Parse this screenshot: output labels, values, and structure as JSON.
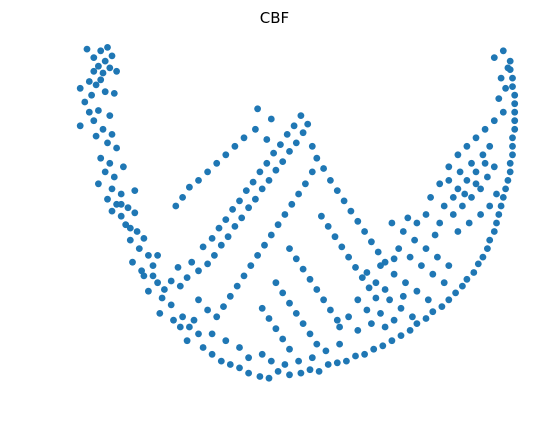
{
  "chart_data": {
    "type": "scatter",
    "title": "CBF",
    "xlabel": "",
    "ylabel": "",
    "axes_visible": false,
    "grid": false,
    "xlim": [
      -1.0,
      1.0
    ],
    "ylim": [
      -1.0,
      1.0
    ],
    "marker_color": "#1f77b4",
    "series": [
      {
        "points": [
          [
            -0.89,
            0.97
          ],
          [
            -0.8,
            0.98
          ],
          [
            -0.78,
            0.93
          ],
          [
            -0.81,
            0.9
          ],
          [
            -0.84,
            0.87
          ],
          [
            -0.79,
            0.86
          ],
          [
            -0.86,
            0.84
          ],
          [
            -0.82,
            0.83
          ],
          [
            -0.76,
            0.84
          ],
          [
            -0.88,
            0.78
          ],
          [
            -0.85,
            0.76
          ],
          [
            -0.83,
            0.79
          ],
          [
            -0.87,
            0.7
          ],
          [
            -0.81,
            0.72
          ],
          [
            -0.77,
            0.71
          ],
          [
            -0.9,
            0.66
          ],
          [
            -0.84,
            0.61
          ],
          [
            -0.79,
            0.58
          ],
          [
            -0.86,
            0.55
          ],
          [
            -0.92,
            0.52
          ],
          [
            -0.82,
            0.5
          ],
          [
            -0.78,
            0.47
          ],
          [
            -0.85,
            0.46
          ],
          [
            -0.8,
            0.42
          ],
          [
            -0.76,
            0.39
          ],
          [
            -0.83,
            0.33
          ],
          [
            -0.79,
            0.3
          ],
          [
            -0.73,
            0.28
          ],
          [
            -0.81,
            0.25
          ],
          [
            -0.77,
            0.22
          ],
          [
            -0.84,
            0.18
          ],
          [
            -0.78,
            0.15
          ],
          [
            -0.74,
            0.12
          ],
          [
            -0.8,
            0.09
          ],
          [
            -0.76,
            0.06
          ],
          [
            -0.71,
            0.04
          ],
          [
            -0.78,
            0.02
          ],
          [
            -0.74,
            -0.01
          ],
          [
            -0.68,
            0.01
          ],
          [
            -0.72,
            -0.06
          ],
          [
            -0.67,
            -0.1
          ],
          [
            -0.64,
            -0.14
          ],
          [
            -0.7,
            -0.15
          ],
          [
            -0.66,
            -0.2
          ],
          [
            -0.62,
            -0.24
          ],
          [
            -0.69,
            -0.28
          ],
          [
            -0.65,
            -0.33
          ],
          [
            -0.6,
            -0.36
          ],
          [
            -0.58,
            -0.4
          ],
          [
            -0.62,
            -0.45
          ],
          [
            -0.56,
            -0.49
          ],
          [
            -0.52,
            -0.53
          ],
          [
            -0.57,
            -0.58
          ],
          [
            -0.51,
            -0.62
          ],
          [
            -0.47,
            -0.6
          ],
          [
            -0.44,
            -0.66
          ],
          [
            -0.4,
            -0.7
          ],
          [
            -0.45,
            -0.74
          ],
          [
            -0.38,
            -0.78
          ],
          [
            -0.34,
            -0.82
          ],
          [
            -0.3,
            -0.86
          ],
          [
            -0.26,
            -0.88
          ],
          [
            -0.22,
            -0.9
          ],
          [
            -0.18,
            -0.93
          ],
          [
            -0.13,
            -0.95
          ],
          [
            -0.09,
            -0.96
          ],
          [
            -0.05,
            -0.92
          ],
          [
            0.0,
            -0.94
          ],
          [
            0.05,
            -0.93
          ],
          [
            0.09,
            -0.91
          ],
          [
            0.13,
            -0.92
          ],
          [
            0.17,
            -0.88
          ],
          [
            0.21,
            -0.87
          ],
          [
            0.25,
            -0.86
          ],
          [
            0.29,
            -0.83
          ],
          [
            0.33,
            -0.82
          ],
          [
            0.37,
            -0.79
          ],
          [
            0.41,
            -0.77
          ],
          [
            0.45,
            -0.74
          ],
          [
            0.49,
            -0.71
          ],
          [
            0.53,
            -0.68
          ],
          [
            0.56,
            -0.64
          ],
          [
            0.6,
            -0.61
          ],
          [
            0.63,
            -0.57
          ],
          [
            0.67,
            -0.54
          ],
          [
            0.7,
            -0.5
          ],
          [
            0.73,
            -0.46
          ],
          [
            0.76,
            -0.42
          ],
          [
            0.78,
            -0.38
          ],
          [
            0.81,
            -0.34
          ],
          [
            0.83,
            -0.29
          ],
          [
            0.85,
            -0.25
          ],
          [
            0.87,
            -0.2
          ],
          [
            0.88,
            -0.15
          ],
          [
            0.9,
            -0.1
          ],
          [
            0.91,
            -0.05
          ],
          [
            0.92,
            0.0
          ],
          [
            0.93,
            0.05
          ],
          [
            0.94,
            0.1
          ],
          [
            0.95,
            0.15
          ],
          [
            0.96,
            0.2
          ],
          [
            0.97,
            0.25
          ],
          [
            0.97,
            0.3
          ],
          [
            0.98,
            0.35
          ],
          [
            0.98,
            0.4
          ],
          [
            0.98,
            0.45
          ],
          [
            0.99,
            0.5
          ],
          [
            0.99,
            0.55
          ],
          [
            0.99,
            0.6
          ],
          [
            0.99,
            0.65
          ],
          [
            0.99,
            0.7
          ],
          [
            0.98,
            0.75
          ],
          [
            0.98,
            0.8
          ],
          [
            0.97,
            0.85
          ],
          [
            0.97,
            0.9
          ],
          [
            -0.55,
            -0.44
          ],
          [
            -0.52,
            -0.39
          ],
          [
            -0.48,
            -0.42
          ],
          [
            -0.45,
            -0.37
          ],
          [
            -0.49,
            -0.31
          ],
          [
            -0.43,
            -0.28
          ],
          [
            -0.4,
            -0.33
          ],
          [
            -0.36,
            -0.29
          ],
          [
            -0.33,
            -0.24
          ],
          [
            -0.38,
            -0.19
          ],
          [
            -0.34,
            -0.14
          ],
          [
            -0.3,
            -0.18
          ],
          [
            -0.27,
            -0.13
          ],
          [
            -0.31,
            -0.08
          ],
          [
            -0.28,
            -0.03
          ],
          [
            -0.24,
            -0.07
          ],
          [
            -0.21,
            -0.02
          ],
          [
            -0.25,
            0.03
          ],
          [
            -0.22,
            0.08
          ],
          [
            -0.18,
            0.04
          ],
          [
            -0.15,
            0.09
          ],
          [
            -0.19,
            0.14
          ],
          [
            -0.16,
            0.19
          ],
          [
            -0.12,
            0.15
          ],
          [
            -0.09,
            0.2
          ],
          [
            -0.13,
            0.25
          ],
          [
            -0.1,
            0.3
          ],
          [
            -0.06,
            0.26
          ],
          [
            -0.03,
            0.31
          ],
          [
            -0.07,
            0.36
          ],
          [
            -0.04,
            0.41
          ],
          [
            0.0,
            0.37
          ],
          [
            0.03,
            0.42
          ],
          [
            -0.01,
            0.47
          ],
          [
            0.02,
            0.52
          ],
          [
            0.06,
            0.48
          ],
          [
            0.08,
            0.53
          ],
          [
            0.05,
            0.58
          ],
          [
            -0.08,
            0.56
          ],
          [
            -0.15,
            0.5
          ],
          [
            -0.2,
            0.45
          ],
          [
            -0.24,
            0.4
          ],
          [
            -0.28,
            0.35
          ],
          [
            -0.32,
            0.3
          ],
          [
            -0.36,
            0.25
          ],
          [
            -0.4,
            0.2
          ],
          [
            -0.44,
            0.16
          ],
          [
            -0.47,
            0.1
          ],
          [
            -0.5,
            0.05
          ],
          [
            -0.14,
            0.62
          ],
          [
            -0.1,
            0.44
          ],
          [
            0.1,
            0.4
          ],
          [
            0.12,
            0.33
          ],
          [
            0.15,
            0.27
          ],
          [
            0.18,
            0.2
          ],
          [
            0.21,
            0.14
          ],
          [
            0.24,
            0.08
          ],
          [
            0.27,
            0.02
          ],
          [
            0.3,
            -0.04
          ],
          [
            0.33,
            -0.1
          ],
          [
            0.36,
            -0.16
          ],
          [
            0.39,
            -0.22
          ],
          [
            0.42,
            -0.28
          ],
          [
            0.1,
            0.25
          ],
          [
            0.07,
            0.18
          ],
          [
            0.04,
            0.12
          ],
          [
            0.01,
            0.06
          ],
          [
            -0.02,
            0.0
          ],
          [
            -0.05,
            -0.06
          ],
          [
            -0.08,
            -0.12
          ],
          [
            -0.11,
            -0.18
          ],
          [
            -0.14,
            -0.24
          ],
          [
            -0.17,
            -0.3
          ],
          [
            -0.2,
            -0.36
          ],
          [
            -0.23,
            -0.42
          ],
          [
            -0.26,
            -0.48
          ],
          [
            -0.29,
            -0.54
          ],
          [
            -0.32,
            -0.6
          ],
          [
            0.14,
            -0.01
          ],
          [
            0.17,
            -0.07
          ],
          [
            0.2,
            -0.13
          ],
          [
            0.23,
            -0.19
          ],
          [
            0.26,
            -0.25
          ],
          [
            0.29,
            -0.31
          ],
          [
            0.32,
            -0.37
          ],
          [
            0.35,
            -0.43
          ],
          [
            0.38,
            -0.49
          ],
          [
            0.0,
            -0.2
          ],
          [
            0.03,
            -0.26
          ],
          [
            0.06,
            -0.32
          ],
          [
            0.09,
            -0.38
          ],
          [
            0.12,
            -0.44
          ],
          [
            0.15,
            -0.5
          ],
          [
            0.18,
            -0.56
          ],
          [
            0.21,
            -0.62
          ],
          [
            -0.06,
            -0.4
          ],
          [
            -0.03,
            -0.46
          ],
          [
            0.0,
            -0.52
          ],
          [
            0.03,
            -0.58
          ],
          [
            0.06,
            -0.64
          ],
          [
            0.09,
            -0.7
          ],
          [
            0.12,
            -0.76
          ],
          [
            -0.12,
            -0.55
          ],
          [
            -0.09,
            -0.61
          ],
          [
            -0.06,
            -0.67
          ],
          [
            -0.03,
            -0.73
          ],
          [
            0.0,
            -0.79
          ],
          [
            0.45,
            -0.05
          ],
          [
            0.5,
            -0.1
          ],
          [
            0.55,
            -0.15
          ],
          [
            0.6,
            -0.2
          ],
          [
            0.65,
            -0.25
          ],
          [
            0.7,
            -0.3
          ],
          [
            0.48,
            -0.2
          ],
          [
            0.53,
            -0.25
          ],
          [
            0.58,
            -0.3
          ],
          [
            0.63,
            -0.35
          ],
          [
            0.68,
            -0.4
          ],
          [
            0.46,
            -0.35
          ],
          [
            0.51,
            -0.4
          ],
          [
            0.56,
            -0.45
          ],
          [
            0.61,
            -0.5
          ],
          [
            0.44,
            -0.5
          ],
          [
            0.49,
            -0.55
          ],
          [
            0.54,
            -0.6
          ],
          [
            0.72,
            0.0
          ],
          [
            0.76,
            0.05
          ],
          [
            0.8,
            0.1
          ],
          [
            0.84,
            0.15
          ],
          [
            0.74,
            0.15
          ],
          [
            0.78,
            0.2
          ],
          [
            0.82,
            0.25
          ],
          [
            0.86,
            0.3
          ],
          [
            0.7,
            0.2
          ],
          [
            0.75,
            0.25
          ],
          [
            0.8,
            0.3
          ],
          [
            0.85,
            0.35
          ],
          [
            0.88,
            0.4
          ],
          [
            0.72,
            0.1
          ],
          [
            0.77,
            0.12
          ],
          [
            0.82,
            0.18
          ],
          [
            0.87,
            0.22
          ],
          [
            0.9,
            0.28
          ],
          [
            0.68,
            0.05
          ],
          [
            0.66,
            -0.05
          ],
          [
            0.64,
            -0.12
          ],
          [
            0.74,
            -0.1
          ],
          [
            0.79,
            -0.05
          ],
          [
            0.84,
            0.0
          ],
          [
            0.88,
            0.05
          ],
          [
            0.91,
            0.12
          ],
          [
            0.6,
            0.0
          ],
          [
            0.56,
            -0.05
          ],
          [
            0.52,
            -0.02
          ],
          [
            0.62,
            0.1
          ],
          [
            0.66,
            0.18
          ],
          [
            0.7,
            0.28
          ],
          [
            0.74,
            0.35
          ],
          [
            0.78,
            0.4
          ],
          [
            0.82,
            0.45
          ],
          [
            0.86,
            0.5
          ],
          [
            0.9,
            0.55
          ],
          [
            0.94,
            0.6
          ],
          [
            0.92,
            0.68
          ],
          [
            0.95,
            0.74
          ],
          [
            0.93,
            0.8
          ],
          [
            0.96,
            0.86
          ],
          [
            0.9,
            0.92
          ],
          [
            0.94,
            0.96
          ],
          [
            0.3,
            -0.5
          ],
          [
            0.34,
            -0.56
          ],
          [
            0.26,
            -0.6
          ],
          [
            0.22,
            -0.66
          ],
          [
            0.3,
            -0.68
          ],
          [
            0.36,
            -0.64
          ],
          [
            0.4,
            -0.58
          ],
          [
            0.42,
            -0.66
          ],
          [
            0.46,
            -0.62
          ],
          [
            0.5,
            -0.48
          ],
          [
            0.38,
            -0.4
          ],
          [
            0.42,
            -0.44
          ],
          [
            0.34,
            -0.34
          ],
          [
            0.4,
            -0.3
          ],
          [
            0.46,
            -0.26
          ],
          [
            -0.4,
            -0.5
          ],
          [
            -0.36,
            -0.56
          ],
          [
            -0.42,
            -0.62
          ],
          [
            -0.48,
            -0.66
          ],
          [
            -0.34,
            -0.7
          ],
          [
            -0.28,
            -0.74
          ],
          [
            -0.22,
            -0.78
          ],
          [
            -0.18,
            -0.84
          ],
          [
            -0.12,
            -0.82
          ],
          [
            -0.08,
            -0.86
          ],
          [
            -0.02,
            -0.88
          ],
          [
            0.04,
            -0.86
          ],
          [
            0.1,
            -0.84
          ],
          [
            0.16,
            -0.8
          ],
          [
            0.22,
            -0.76
          ],
          [
            -0.6,
            -0.3
          ],
          [
            -0.64,
            -0.36
          ],
          [
            -0.58,
            -0.24
          ],
          [
            -0.7,
            -0.08
          ],
          [
            -0.74,
            0.06
          ],
          [
            -0.68,
            0.14
          ],
          [
            -0.88,
            0.6
          ],
          [
            -0.92,
            0.74
          ],
          [
            -0.86,
            0.92
          ],
          [
            -0.83,
            0.96
          ]
        ]
      }
    ]
  }
}
